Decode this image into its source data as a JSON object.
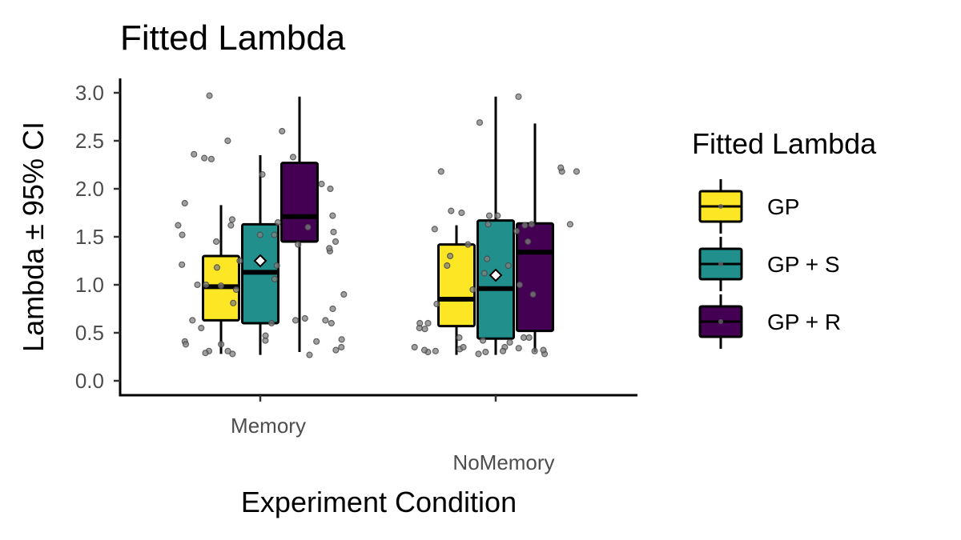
{
  "chart_data": {
    "type": "boxplot",
    "title": "Fitted Lambda",
    "xlabel": "Experiment Condition",
    "ylabel": "Lambda ± 95% CI",
    "ylim": [
      -0.15,
      3.15
    ],
    "yticks": [
      0.0,
      0.5,
      1.0,
      1.5,
      2.0,
      2.5,
      3.0
    ],
    "ytick_labels": [
      "0.0",
      "0.5",
      "1.0",
      "1.5",
      "2.0",
      "2.5",
      "3.0"
    ],
    "categories": [
      "Memory",
      "NoMemory"
    ],
    "grid": false,
    "legend": {
      "title": "Fitted Lambda",
      "placement": "right",
      "entries": [
        "GP",
        "GP + S",
        "GP + R"
      ]
    },
    "series": [
      {
        "name": "GP",
        "color": "#fde725",
        "boxes": [
          {
            "category": "Memory",
            "min": 0.28,
            "q1": 0.63,
            "median": 0.98,
            "q3": 1.3,
            "max": 1.83
          },
          {
            "category": "NoMemory",
            "min": 0.27,
            "q1": 0.57,
            "median": 0.85,
            "q3": 1.42,
            "max": 1.62
          }
        ]
      },
      {
        "name": "GP + S",
        "color": "#21908c",
        "boxes": [
          {
            "category": "Memory",
            "min": 0.27,
            "q1": 0.6,
            "median": 1.13,
            "q3": 1.63,
            "max": 2.35,
            "mean": 1.25
          },
          {
            "category": "NoMemory",
            "min": 0.27,
            "q1": 0.44,
            "median": 0.96,
            "q3": 1.67,
            "max": 2.96,
            "mean": 1.1
          }
        ]
      },
      {
        "name": "GP + R",
        "color": "#440154",
        "boxes": [
          {
            "category": "Memory",
            "min": 0.3,
            "q1": 1.45,
            "median": 1.71,
            "q3": 2.27,
            "max": 2.96
          },
          {
            "category": "NoMemory",
            "min": 0.3,
            "q1": 0.52,
            "median": 1.34,
            "q3": 1.64,
            "max": 2.68
          }
        ]
      }
    ],
    "points": [
      {
        "category": "Memory",
        "values": [
          0.63,
          0.41,
          1.45,
          1.52,
          1.62,
          1.85,
          0.65,
          1.06,
          1.35,
          1.6,
          1.68,
          0.31,
          0.38,
          0.27,
          0.43,
          0.55,
          0.81,
          1.21,
          0.99,
          2.32,
          2.05,
          2.31,
          2.0,
          1.45,
          1.72,
          1.55,
          2.5,
          2.6,
          2.15,
          2.97,
          1.38,
          0.28,
          0.35,
          0.32,
          0.75,
          0.41,
          0.6,
          0.63,
          0.95,
          2.36,
          2.33,
          1.52,
          1.18,
          1.0,
          0.9,
          0.31,
          0.42,
          0.63,
          1.65,
          1.52,
          1.25,
          1.2,
          1.62,
          1.42,
          1.0,
          0.47,
          0.38,
          0.6,
          0.29
        ]
      },
      {
        "category": "NoMemory",
        "values": [
          0.45,
          1.63,
          1.42,
          1.56,
          1.72,
          0.3,
          0.31,
          0.35,
          0.6,
          0.8,
          1.12,
          1.3,
          1.77,
          1.2,
          0.32,
          0.31,
          0.4,
          0.28,
          0.33,
          2.18,
          2.18,
          2.69,
          2.96,
          2.22,
          2.18,
          1.72,
          1.63,
          1.45,
          1.2,
          0.35,
          0.42,
          0.28,
          0.31,
          0.45,
          0.95,
          1.75,
          1.0,
          1.58,
          1.27,
          0.9,
          0.55,
          0.35,
          0.3,
          0.34,
          1.63,
          1.62,
          0.54,
          0.45,
          0.6,
          0.32
        ]
      }
    ]
  }
}
